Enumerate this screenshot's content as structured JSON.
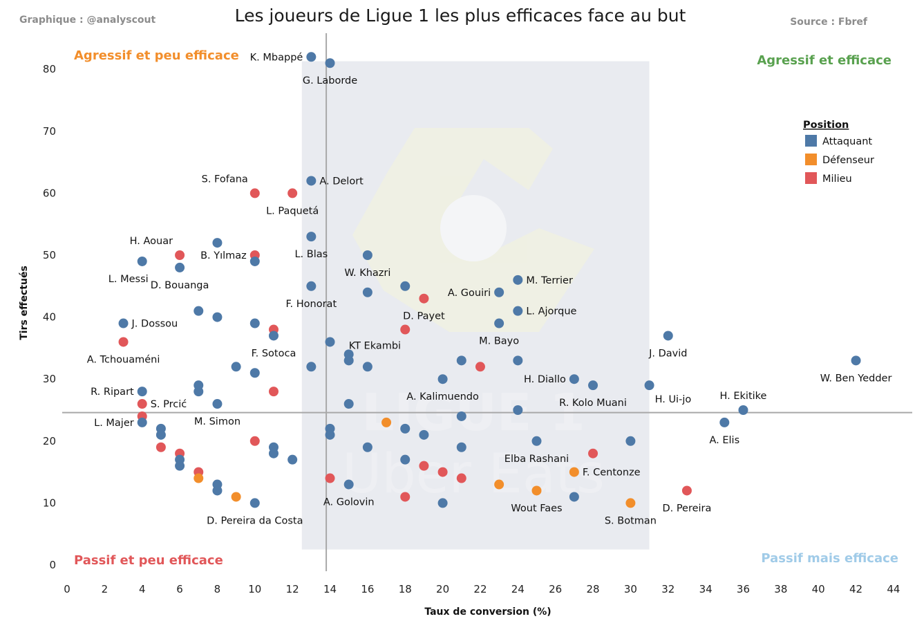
{
  "header": {
    "credit": "Graphique : @analyscout",
    "source": "Source : Fbref"
  },
  "quadrant_labels": {
    "top_left": "Agressif et peu efficace",
    "top_right": "Agressif et efficace",
    "bottom_left": "Passif et peu efficace",
    "bottom_right": "Passif mais efficace"
  },
  "watermark": {
    "line1": "LIGUE 1",
    "line2": "Uber Eats"
  },
  "colors": {
    "Attaquant": "#4e79a7",
    "Défenseur": "#f28e2b",
    "Milieu": "#e15759",
    "top_left": "#f28e2b",
    "top_right": "#59a14f",
    "bottom_left": "#e15759",
    "bottom_right": "#a0cbe8",
    "background_box": "#e9ebf0",
    "reference_line": "#a8a8a8"
  },
  "chart_data": {
    "type": "scatter",
    "title": "Les joueurs de Ligue 1 les plus efficaces face au but",
    "xlabel": "Taux de conversion (%)",
    "ylabel": "Tirs effectués",
    "xlim": [
      0,
      45
    ],
    "ylim": [
      0,
      86
    ],
    "x_ticks": [
      0,
      2,
      4,
      6,
      8,
      10,
      12,
      14,
      16,
      18,
      20,
      22,
      24,
      26,
      28,
      30,
      32,
      34,
      36,
      38,
      40,
      42,
      44
    ],
    "y_ticks": [
      0,
      10,
      20,
      30,
      40,
      50,
      60,
      70,
      80
    ],
    "reference_lines": {
      "x": 13.8,
      "y": 24.6
    },
    "shaded_box": {
      "x": [
        12.5,
        31
      ],
      "y": [
        2.5,
        81.3
      ]
    },
    "legend": {
      "title": "Position",
      "placement": "right",
      "entries": [
        "Attaquant",
        "Défenseur",
        "Milieu"
      ]
    },
    "points": [
      {
        "x": 13,
        "y": 82,
        "pos": "Attaquant",
        "label": "K. Mbappé",
        "side": "l"
      },
      {
        "x": 14,
        "y": 81,
        "pos": "Attaquant",
        "label": "G. Laborde",
        "side": "b"
      },
      {
        "x": 13,
        "y": 62,
        "pos": "Attaquant",
        "label": "A. Delort",
        "side": "r"
      },
      {
        "x": 10,
        "y": 60,
        "pos": "Milieu",
        "label": "S. Fofana",
        "side": "tl"
      },
      {
        "x": 12,
        "y": 60,
        "pos": "Milieu",
        "label": "L. Paquetá",
        "side": "b"
      },
      {
        "x": 8,
        "y": 52,
        "pos": "Attaquant",
        "label": "",
        "side": ""
      },
      {
        "x": 6,
        "y": 50,
        "pos": "Milieu",
        "label": "H. Aouar",
        "side": "tl"
      },
      {
        "x": 4,
        "y": 49,
        "pos": "Attaquant",
        "label": "L. Messi",
        "side": "bl"
      },
      {
        "x": 6,
        "y": 48,
        "pos": "Attaquant",
        "label": "D. Bouanga",
        "side": "b"
      },
      {
        "x": 10,
        "y": 50,
        "pos": "Milieu",
        "label": "B. Yılmaz",
        "side": "l"
      },
      {
        "x": 10,
        "y": 49,
        "pos": "Attaquant",
        "label": "",
        "side": ""
      },
      {
        "x": 13,
        "y": 53,
        "pos": "Attaquant",
        "label": "L. Blas",
        "side": "b"
      },
      {
        "x": 16,
        "y": 50,
        "pos": "Attaquant",
        "label": "W. Khazri",
        "side": "b"
      },
      {
        "x": 13,
        "y": 45,
        "pos": "Attaquant",
        "label": "F. Honorat",
        "side": "b"
      },
      {
        "x": 16,
        "y": 44,
        "pos": "Attaquant",
        "label": "",
        "side": ""
      },
      {
        "x": 18,
        "y": 45,
        "pos": "Attaquant",
        "label": "",
        "side": ""
      },
      {
        "x": 19,
        "y": 43,
        "pos": "Milieu",
        "label": "D. Payet",
        "side": "b"
      },
      {
        "x": 23,
        "y": 44,
        "pos": "Attaquant",
        "label": "A. Gouiri",
        "side": "l"
      },
      {
        "x": 24,
        "y": 46,
        "pos": "Attaquant",
        "label": "M. Terrier",
        "side": "r"
      },
      {
        "x": 24,
        "y": 41,
        "pos": "Attaquant",
        "label": "L. Ajorque",
        "side": "r"
      },
      {
        "x": 23,
        "y": 39,
        "pos": "Attaquant",
        "label": "M. Bayo",
        "side": "b"
      },
      {
        "x": 18,
        "y": 38,
        "pos": "Milieu",
        "label": "",
        "side": ""
      },
      {
        "x": 7,
        "y": 41,
        "pos": "Attaquant",
        "label": "",
        "side": ""
      },
      {
        "x": 8,
        "y": 40,
        "pos": "Attaquant",
        "label": "",
        "side": ""
      },
      {
        "x": 10,
        "y": 39,
        "pos": "Attaquant",
        "label": "",
        "side": ""
      },
      {
        "x": 11,
        "y": 38,
        "pos": "Milieu",
        "label": "",
        "side": ""
      },
      {
        "x": 11,
        "y": 37,
        "pos": "Attaquant",
        "label": "F. Sotoca",
        "side": "b"
      },
      {
        "x": 3,
        "y": 39,
        "pos": "Attaquant",
        "label": "J. Dossou",
        "side": "r"
      },
      {
        "x": 3,
        "y": 36,
        "pos": "Milieu",
        "label": "A. Tchouaméni",
        "side": "b"
      },
      {
        "x": 14,
        "y": 36,
        "pos": "Attaquant",
        "label": "",
        "side": ""
      },
      {
        "x": 15,
        "y": 34,
        "pos": "Attaquant",
        "label": "KT Ekambi",
        "side": "tr"
      },
      {
        "x": 15,
        "y": 33,
        "pos": "Attaquant",
        "label": "",
        "side": ""
      },
      {
        "x": 16,
        "y": 32,
        "pos": "Attaquant",
        "label": "",
        "side": ""
      },
      {
        "x": 13,
        "y": 32,
        "pos": "Attaquant",
        "label": "",
        "side": ""
      },
      {
        "x": 9,
        "y": 32,
        "pos": "Attaquant",
        "label": "",
        "side": ""
      },
      {
        "x": 10,
        "y": 31,
        "pos": "Attaquant",
        "label": "",
        "side": ""
      },
      {
        "x": 21,
        "y": 33,
        "pos": "Attaquant",
        "label": "",
        "side": ""
      },
      {
        "x": 22,
        "y": 32,
        "pos": "Milieu",
        "label": "",
        "side": ""
      },
      {
        "x": 24,
        "y": 33,
        "pos": "Attaquant",
        "label": "",
        "side": ""
      },
      {
        "x": 20,
        "y": 30,
        "pos": "Attaquant",
        "label": "A. Kalimuendo",
        "side": "b"
      },
      {
        "x": 27,
        "y": 30,
        "pos": "Attaquant",
        "label": "H. Diallo",
        "side": "l"
      },
      {
        "x": 28,
        "y": 29,
        "pos": "Attaquant",
        "label": "R. Kolo Muani",
        "side": "b"
      },
      {
        "x": 31,
        "y": 29,
        "pos": "Attaquant",
        "label": "H. Ui-jo",
        "side": "br"
      },
      {
        "x": 32,
        "y": 37,
        "pos": "Attaquant",
        "label": "J. David",
        "side": "b"
      },
      {
        "x": 42,
        "y": 33,
        "pos": "Attaquant",
        "label": "W. Ben Yedder",
        "side": "b"
      },
      {
        "x": 36,
        "y": 25,
        "pos": "Attaquant",
        "label": "H. Ekitike",
        "side": "t"
      },
      {
        "x": 35,
        "y": 23,
        "pos": "Attaquant",
        "label": "A. Elis",
        "side": "b"
      },
      {
        "x": 7,
        "y": 29,
        "pos": "Attaquant",
        "label": "",
        "side": ""
      },
      {
        "x": 7,
        "y": 28,
        "pos": "Attaquant",
        "label": "",
        "side": ""
      },
      {
        "x": 11,
        "y": 28,
        "pos": "Milieu",
        "label": "",
        "side": ""
      },
      {
        "x": 4,
        "y": 28,
        "pos": "Attaquant",
        "label": "R. Ripart",
        "side": "l"
      },
      {
        "x": 4,
        "y": 26,
        "pos": "Milieu",
        "label": "S. Prcić",
        "side": "r"
      },
      {
        "x": 8,
        "y": 26,
        "pos": "Attaquant",
        "label": "M. Simon",
        "side": "b"
      },
      {
        "x": 15,
        "y": 26,
        "pos": "Attaquant",
        "label": "",
        "side": ""
      },
      {
        "x": 24,
        "y": 25,
        "pos": "Attaquant",
        "label": "",
        "side": ""
      },
      {
        "x": 4,
        "y": 24,
        "pos": "Milieu",
        "label": "",
        "side": ""
      },
      {
        "x": 4,
        "y": 23,
        "pos": "Attaquant",
        "label": "L. Majer",
        "side": "l"
      },
      {
        "x": 5,
        "y": 22,
        "pos": "Attaquant",
        "label": "",
        "side": ""
      },
      {
        "x": 5,
        "y": 21,
        "pos": "Attaquant",
        "label": "",
        "side": ""
      },
      {
        "x": 14,
        "y": 22,
        "pos": "Attaquant",
        "label": "",
        "side": ""
      },
      {
        "x": 14,
        "y": 21,
        "pos": "Attaquant",
        "label": "",
        "side": ""
      },
      {
        "x": 17,
        "y": 23,
        "pos": "Défenseur",
        "label": "",
        "side": ""
      },
      {
        "x": 18,
        "y": 22,
        "pos": "Attaquant",
        "label": "",
        "side": ""
      },
      {
        "x": 19,
        "y": 21,
        "pos": "Attaquant",
        "label": "",
        "side": ""
      },
      {
        "x": 21,
        "y": 24,
        "pos": "Attaquant",
        "label": "",
        "side": ""
      },
      {
        "x": 25,
        "y": 20,
        "pos": "Attaquant",
        "label": "Elba Rashani",
        "side": "b"
      },
      {
        "x": 30,
        "y": 20,
        "pos": "Attaquant",
        "label": "",
        "side": ""
      },
      {
        "x": 28,
        "y": 18,
        "pos": "Milieu",
        "label": "",
        "side": ""
      },
      {
        "x": 27,
        "y": 15,
        "pos": "Défenseur",
        "label": "F. Centonze",
        "side": "r"
      },
      {
        "x": 33,
        "y": 12,
        "pos": "Milieu",
        "label": "D. Pereira",
        "side": "b"
      },
      {
        "x": 30,
        "y": 10,
        "pos": "Défenseur",
        "label": "S. Botman",
        "side": "b"
      },
      {
        "x": 27,
        "y": 11,
        "pos": "Attaquant",
        "label": "",
        "side": ""
      },
      {
        "x": 25,
        "y": 12,
        "pos": "Défenseur",
        "label": "Wout Faes",
        "side": "b"
      },
      {
        "x": 23,
        "y": 13,
        "pos": "Défenseur",
        "label": "",
        "side": ""
      },
      {
        "x": 21,
        "y": 19,
        "pos": "Attaquant",
        "label": "",
        "side": ""
      },
      {
        "x": 21,
        "y": 14,
        "pos": "Milieu",
        "label": "",
        "side": ""
      },
      {
        "x": 20,
        "y": 15,
        "pos": "Milieu",
        "label": "",
        "side": ""
      },
      {
        "x": 19,
        "y": 16,
        "pos": "Milieu",
        "label": "",
        "side": ""
      },
      {
        "x": 18,
        "y": 17,
        "pos": "Attaquant",
        "label": "",
        "side": ""
      },
      {
        "x": 16,
        "y": 19,
        "pos": "Attaquant",
        "label": "",
        "side": ""
      },
      {
        "x": 18,
        "y": 11,
        "pos": "Milieu",
        "label": "",
        "side": ""
      },
      {
        "x": 20,
        "y": 10,
        "pos": "Attaquant",
        "label": "",
        "side": ""
      },
      {
        "x": 14,
        "y": 14,
        "pos": "Milieu",
        "label": "",
        "side": ""
      },
      {
        "x": 15,
        "y": 13,
        "pos": "Attaquant",
        "label": "A. Golovin",
        "side": "b"
      },
      {
        "x": 12,
        "y": 17,
        "pos": "Attaquant",
        "label": "",
        "side": ""
      },
      {
        "x": 11,
        "y": 19,
        "pos": "Attaquant",
        "label": "",
        "side": ""
      },
      {
        "x": 11,
        "y": 18,
        "pos": "Attaquant",
        "label": "",
        "side": ""
      },
      {
        "x": 10,
        "y": 20,
        "pos": "Milieu",
        "label": "",
        "side": ""
      },
      {
        "x": 5,
        "y": 19,
        "pos": "Milieu",
        "label": "",
        "side": ""
      },
      {
        "x": 6,
        "y": 18,
        "pos": "Milieu",
        "label": "",
        "side": ""
      },
      {
        "x": 6,
        "y": 17,
        "pos": "Attaquant",
        "label": "",
        "side": ""
      },
      {
        "x": 6,
        "y": 16,
        "pos": "Attaquant",
        "label": "",
        "side": ""
      },
      {
        "x": 7,
        "y": 15,
        "pos": "Milieu",
        "label": "",
        "side": ""
      },
      {
        "x": 7,
        "y": 14,
        "pos": "Défenseur",
        "label": "",
        "side": ""
      },
      {
        "x": 8,
        "y": 13,
        "pos": "Attaquant",
        "label": "",
        "side": ""
      },
      {
        "x": 8,
        "y": 12,
        "pos": "Attaquant",
        "label": "",
        "side": ""
      },
      {
        "x": 9,
        "y": 11,
        "pos": "Défenseur",
        "label": "",
        "side": ""
      },
      {
        "x": 10,
        "y": 10,
        "pos": "Attaquant",
        "label": "D. Pereira da Costa",
        "side": "b"
      }
    ]
  }
}
